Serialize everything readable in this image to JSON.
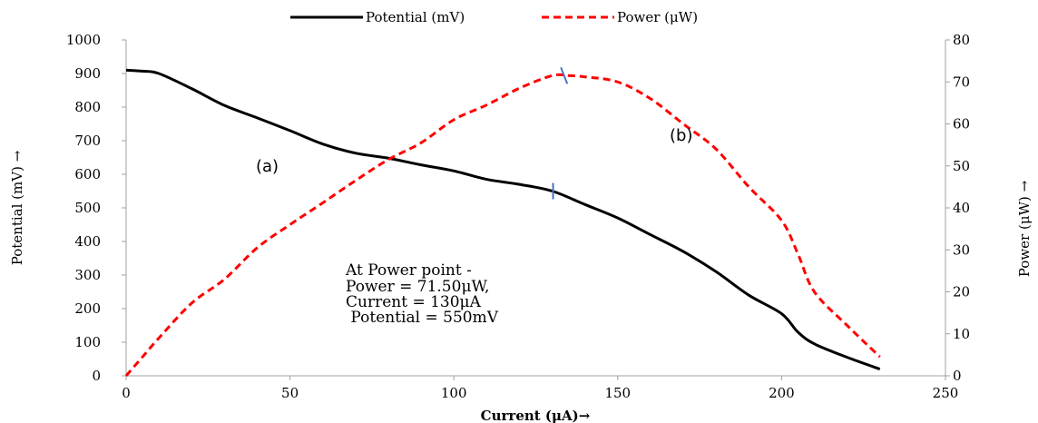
{
  "chart_data": {
    "type": "line",
    "xlabel": "Current (μA)→",
    "ylabel_left": "Potential (mV) →",
    "ylabel_right": "Power (μW) →",
    "xlim": [
      0,
      250
    ],
    "ylim_left": [
      0,
      1000
    ],
    "ylim_right": [
      0,
      80
    ],
    "x_ticks": [
      0,
      50,
      100,
      150,
      200,
      250
    ],
    "y_left_ticks": [
      0,
      100,
      200,
      300,
      400,
      500,
      600,
      700,
      800,
      900,
      1000
    ],
    "y_right_ticks": [
      0,
      10,
      20,
      30,
      40,
      50,
      60,
      70,
      80
    ],
    "grid": false,
    "legend_position": "top-center",
    "series": [
      {
        "name": "Potential (mV)",
        "axis": "left",
        "color": "#000000",
        "style": "solid",
        "x": [
          0,
          5,
          10,
          20,
          30,
          40,
          50,
          60,
          70,
          80,
          90,
          100,
          110,
          120,
          130,
          140,
          150,
          160,
          170,
          180,
          190,
          200,
          205,
          210,
          220,
          230
        ],
        "values": [
          910,
          907,
          900,
          855,
          805,
          768,
          730,
          690,
          663,
          648,
          628,
          610,
          585,
          570,
          550,
          510,
          470,
          420,
          370,
          310,
          240,
          185,
          130,
          95,
          55,
          20
        ]
      },
      {
        "name": "Power (μW)",
        "axis": "right",
        "color": "#ff0000",
        "style": "dashed",
        "x": [
          0,
          5,
          10,
          20,
          30,
          40,
          50,
          60,
          70,
          80,
          90,
          100,
          110,
          120,
          130,
          135,
          140,
          150,
          160,
          170,
          180,
          190,
          200,
          205,
          210,
          220,
          230
        ],
        "values": [
          0,
          4.5,
          9,
          17.3,
          23,
          30.5,
          36,
          41.2,
          46.5,
          51.5,
          55.5,
          61,
          64.5,
          68.5,
          71.5,
          71.5,
          71.2,
          70,
          66,
          60,
          54,
          45,
          37,
          29,
          20,
          12,
          4.5
        ]
      }
    ],
    "annotations": {
      "max_power_text": [
        "At Power point -",
        "Power = 71.50μW,",
        "Current = 130μA",
        " Potential = 550mV"
      ],
      "label_a": "(a)",
      "label_b": "(b)"
    }
  }
}
